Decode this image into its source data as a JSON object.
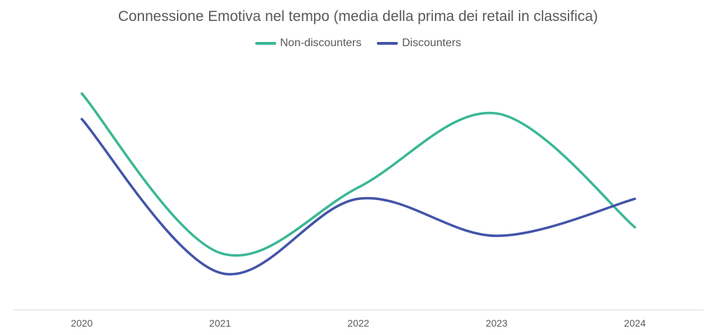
{
  "chart_data": {
    "type": "line",
    "title": "Connessione Emotiva nel tempo (media della prima dei retail in classifica)",
    "categories": [
      "2020",
      "2021",
      "2022",
      "2023",
      "2024"
    ],
    "series": [
      {
        "name": "Non-discounters",
        "values": [
          76,
          20,
          43,
          69,
          29
        ],
        "color": "#3ab795"
      },
      {
        "name": "Discounters",
        "values": [
          67,
          13,
          39,
          26,
          39
        ],
        "color": "#4254a8"
      }
    ],
    "ylim": [
      0,
      100
    ],
    "grid": false,
    "smooth": true,
    "legend_position": "top",
    "xlabel": "",
    "ylabel": ""
  }
}
